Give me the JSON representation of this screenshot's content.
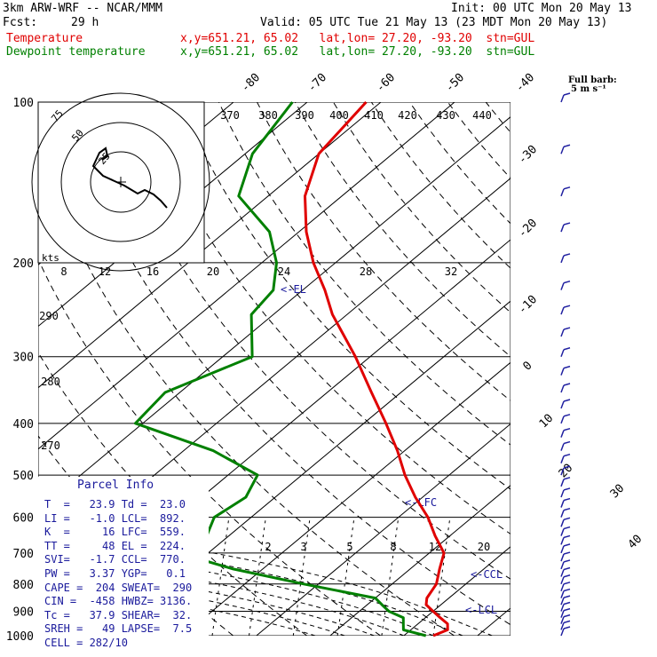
{
  "header": {
    "model": "3km ARW-WRF -- NCAR/MMM",
    "init": "Init: 00 UTC Mon 20 May 13",
    "fcst_label": "Fcst:",
    "fcst_value": "29 h",
    "valid": "Valid: 05 UTC Tue 21 May 13 (23 MDT Mon 20 May 13)",
    "temp_label": "Temperature",
    "temp_info": "x,y=651.21, 65.02   lat,lon= 27.20, -93.20  stn=GUL",
    "dew_label": "Dewpoint temperature",
    "dew_info": "x,y=651.21, 65.02   lat,lon= 27.20, -93.20  stn=GUL"
  },
  "colors": {
    "temperature": "#e00000",
    "dewpoint": "#008000",
    "parcel": "#1a1a9c",
    "axes": "#000000"
  },
  "barb_header": {
    "line1": "Full barb:",
    "line2": "5 m s⁻¹"
  },
  "parcel_info": {
    "title": "Parcel Info",
    "rows": [
      "T  =   23.9 Td =  23.0",
      "LI =   -1.0 LCL=  892.",
      "K  =     16 LFC=  559.",
      "TT =     48 EL =  224.",
      "SVI=   -1.7 CCL=  770.",
      "PW =   3.37 YGP=   0.1",
      "CAPE =  204 SWEAT=  290",
      "CIN =  -458 HWBZ= 3136.",
      "Tc =   37.9 SHEAR=  32.",
      "SREH =   49 LAPSE=  7.5",
      "CELL = 282/10"
    ]
  },
  "chart_data": {
    "type": "skew-t",
    "pressure_axis": {
      "levels": [
        100,
        200,
        300,
        400,
        500,
        600,
        700,
        800,
        900,
        1000
      ],
      "unit": "hPa",
      "scale": "log"
    },
    "isotherm_labels": [
      -80,
      -70,
      -60,
      -50,
      -40,
      -30,
      -20,
      -10,
      0,
      10,
      20,
      30,
      40
    ],
    "theta_labels": [
      370,
      380,
      390,
      400,
      410,
      420,
      430,
      440,
      290,
      280,
      270
    ],
    "mixing_ratio_labels": [
      "2",
      "3",
      "5",
      "8",
      "12",
      "20"
    ],
    "hodograph": {
      "speed_label": "kts",
      "ring_labels": [
        "25",
        "50",
        "75"
      ]
    },
    "theta_e_scale": [
      8,
      12,
      16,
      20,
      24,
      28,
      32
    ],
    "markers": {
      "EL": "<-EL",
      "LFC": "<-LFC",
      "CCL": "<-CCL",
      "LCL": "<-LCL"
    },
    "temperature": [
      [
        1000,
        24
      ],
      [
        975,
        25
      ],
      [
        950,
        24
      ],
      [
        925,
        22
      ],
      [
        900,
        20
      ],
      [
        875,
        18
      ],
      [
        850,
        17
      ],
      [
        800,
        16
      ],
      [
        750,
        14
      ],
      [
        700,
        12
      ],
      [
        650,
        8
      ],
      [
        600,
        4
      ],
      [
        550,
        -1
      ],
      [
        500,
        -6
      ],
      [
        450,
        -11
      ],
      [
        400,
        -17
      ],
      [
        350,
        -24
      ],
      [
        300,
        -32
      ],
      [
        250,
        -42
      ],
      [
        225,
        -47
      ],
      [
        200,
        -53
      ],
      [
        175,
        -59
      ],
      [
        150,
        -65
      ],
      [
        125,
        -70
      ],
      [
        100,
        -72
      ]
    ],
    "dewpoint": [
      [
        1000,
        23
      ],
      [
        975,
        19
      ],
      [
        950,
        18
      ],
      [
        925,
        17
      ],
      [
        900,
        14
      ],
      [
        875,
        12
      ],
      [
        850,
        10
      ],
      [
        800,
        -2
      ],
      [
        750,
        -14
      ],
      [
        700,
        -24
      ],
      [
        650,
        -23
      ],
      [
        600,
        -25
      ],
      [
        550,
        -24
      ],
      [
        500,
        -26
      ],
      [
        450,
        -36
      ],
      [
        400,
        -51
      ],
      [
        350,
        -52
      ],
      [
        300,
        -46
      ],
      [
        250,
        -53
      ],
      [
        225,
        -54
      ],
      [
        200,
        -58
      ],
      [
        175,
        -64
      ],
      [
        150,
        -74
      ],
      [
        125,
        -79
      ],
      [
        100,
        -82
      ]
    ],
    "parcel_trace_labelled": true
  }
}
